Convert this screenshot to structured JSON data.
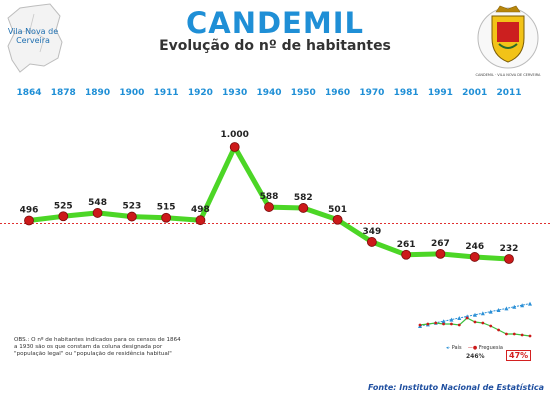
{
  "title": "CANDEMIL",
  "subtitle": "Evolução do nº de habitantes",
  "map_label": "Vila Nova de Cerveira",
  "crest_text": "CANDEMIL · VILA NOVA DE CERVEIRA",
  "obs_note": "OBS.: O nº de habitantes indicados para os censos de 1864 a 1930 são os que constam da coluna designada por \"população legal\" ou \"população de residência habitual\"",
  "source": "Fonte: Instituto Nacional de Estatística",
  "legend": {
    "pais": "País",
    "freguesia": "Freguesia"
  },
  "mini_percentages": {
    "pais": "246%",
    "freguesia": "47%"
  },
  "colors": {
    "title": "#1f8fd6",
    "line": "#4cd626",
    "point": "#cc1a1a",
    "year": "#1f8fd6",
    "reference_line": "#e03030"
  },
  "chart_data": {
    "type": "line",
    "title": "Evolução do nº de habitantes",
    "x": [
      "1864",
      "1878",
      "1890",
      "1900",
      "1911",
      "1920",
      "1930",
      "1940",
      "1950",
      "1960",
      "1970",
      "1981",
      "1991",
      "2001",
      "2011"
    ],
    "series": [
      {
        "values": [
          496,
          525,
          548,
          523,
          515,
          498,
          1000,
          588,
          582,
          501,
          349,
          261,
          267,
          246,
          232
        ],
        "labels": [
          "496",
          "525",
          "548",
          "523",
          "515",
          "498",
          "1.000",
          "588",
          "582",
          "501",
          "349",
          "261",
          "267",
          "246",
          "232"
        ]
      }
    ],
    "reference_value": 496,
    "ylim": [
      150,
      1100
    ],
    "grid": false
  }
}
